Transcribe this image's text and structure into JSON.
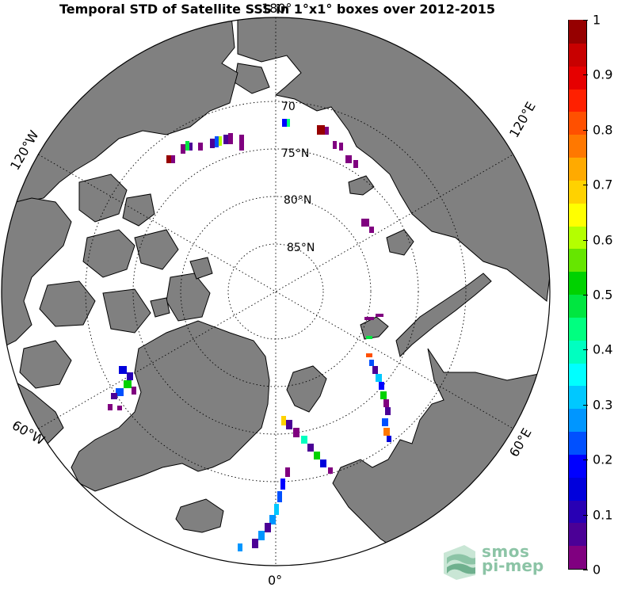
{
  "title": "Temporal STD of Satellite SSS in 1°x1° boxes over 2012-2015",
  "map": {
    "projection": "north polar stereographic",
    "colors": {
      "land": "#808080",
      "ocean": "#ffffff",
      "coast": "#000000",
      "grid": "#000000"
    },
    "lat_labels": [
      "70",
      "75°N",
      "80°N",
      "85°N"
    ],
    "lon_labels": {
      "top": "180°",
      "left_120": "120°W",
      "right_120": "120°E",
      "left_60": "60°W",
      "right_60": "60°E",
      "bottom": "0°"
    }
  },
  "colorbar": {
    "min": 0,
    "max": 1,
    "tick_labels": [
      "1",
      "0.9",
      "0.8",
      "0.7",
      "0.6",
      "0.5",
      "0.4",
      "0.3",
      "0.2",
      "0.1",
      "0"
    ],
    "colors": [
      "#800080",
      "#4b0096",
      "#2800b4",
      "#0000dc",
      "#0000ff",
      "#0050ff",
      "#0096ff",
      "#00c8ff",
      "#00ffff",
      "#00ffc0",
      "#00ff80",
      "#00e640",
      "#00d200",
      "#66e600",
      "#b4ff00",
      "#ffff00",
      "#ffd200",
      "#ffaa00",
      "#ff7800",
      "#ff5000",
      "#ff2000",
      "#e60000",
      "#c80000",
      "#960000"
    ]
  },
  "logo": {
    "line1": "smos",
    "line2": "pi-mep"
  }
}
